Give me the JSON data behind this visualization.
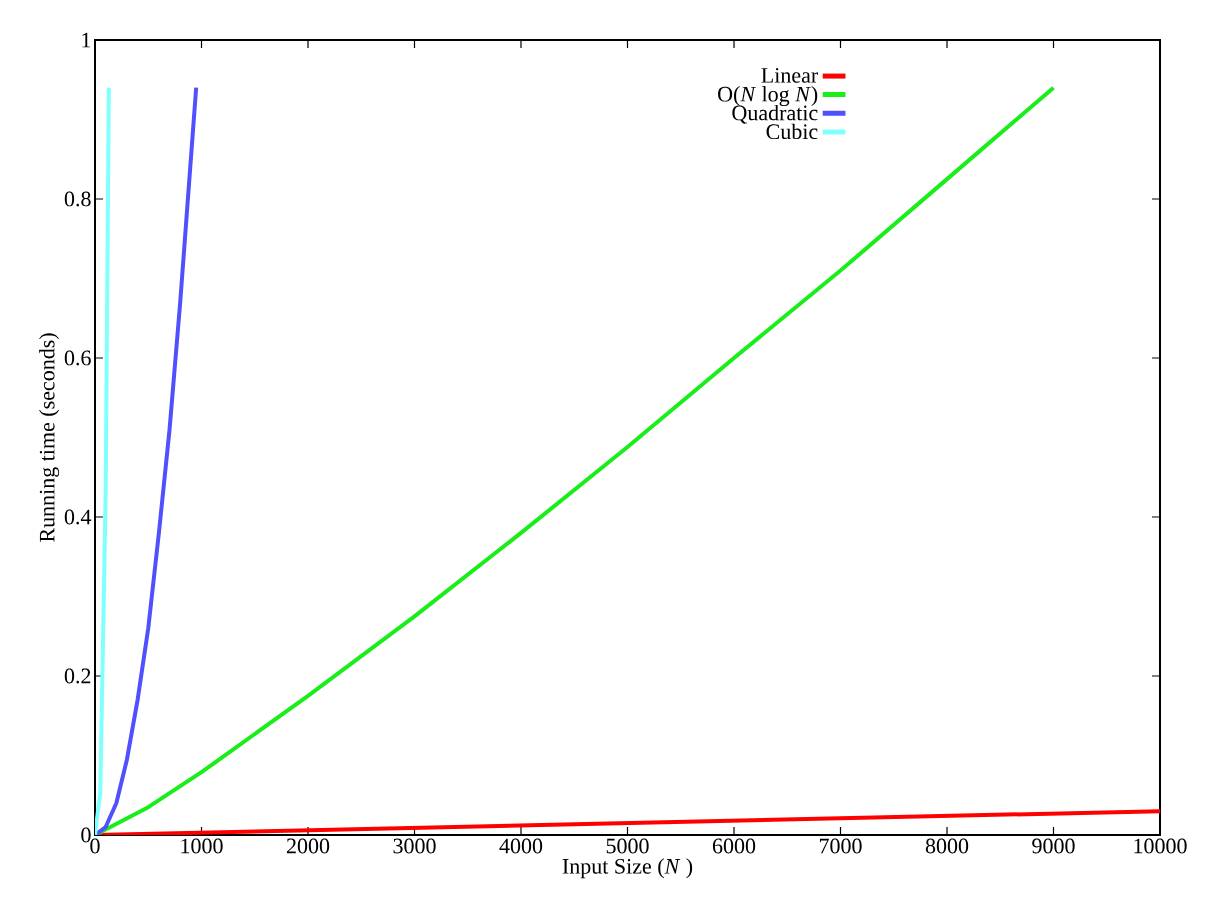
{
  "chart_data": {
    "type": "line",
    "xlabel": "Input Size (*N* )",
    "ylabel": "Running time (seconds)",
    "xlim": [
      0,
      10000
    ],
    "ylim": [
      0,
      1
    ],
    "xticks": [
      0,
      1000,
      2000,
      3000,
      4000,
      5000,
      6000,
      7000,
      8000,
      9000,
      10000
    ],
    "yticks": [
      0,
      0.2,
      0.4,
      0.6,
      0.8,
      1
    ],
    "legend": "top right",
    "grid": false,
    "marker": "none",
    "line_style": "solid",
    "series": [
      {
        "name": "Linear",
        "color": "#ff0000",
        "x": [
          0,
          10000
        ],
        "values": [
          0,
          0.03
        ]
      },
      {
        "name": "O(*N* log *N*)",
        "color": "#1aee1a",
        "x": [
          0,
          500,
          1000,
          2000,
          3000,
          4000,
          5000,
          6000,
          7000,
          8000,
          9000
        ],
        "values": [
          0,
          0.035,
          0.079,
          0.175,
          0.275,
          0.38,
          0.488,
          0.6,
          0.71,
          0.825,
          0.94
        ]
      },
      {
        "name": "Quadratic",
        "color": "#5050ff",
        "x": [
          0,
          100,
          200,
          300,
          400,
          500,
          600,
          700,
          800,
          950
        ],
        "values": [
          0,
          0.01,
          0.04,
          0.095,
          0.17,
          0.26,
          0.38,
          0.51,
          0.67,
          0.94
        ]
      },
      {
        "name": "Cubic",
        "color": "#80ffff",
        "x": [
          0,
          50,
          100,
          130
        ],
        "values": [
          0,
          0.054,
          0.43,
          0.94
        ]
      }
    ]
  }
}
